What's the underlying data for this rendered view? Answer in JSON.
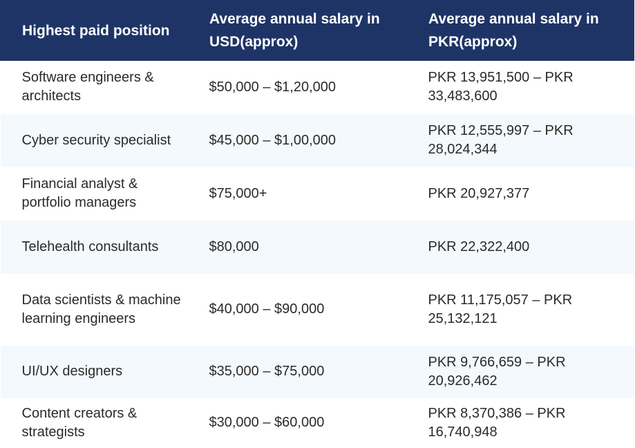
{
  "table": {
    "headers": [
      "Highest paid position",
      "Average annual salary in USD(approx)",
      "Average annual salary in PKR(approx)"
    ],
    "rows": [
      {
        "position": "Software engineers & architects",
        "usd": "$50,000 – $1,20,000",
        "pkr": "PKR 13,951,500 – PKR 33,483,600"
      },
      {
        "position": "Cyber security specialist",
        "usd": "$45,000 – $1,00,000",
        "pkr": "PKR 12,555,997 – PKR 28,024,344"
      },
      {
        "position": "Financial analyst & portfolio managers",
        "usd": "$75,000+",
        "pkr": "PKR 20,927,377"
      },
      {
        "position": "Telehealth consultants",
        "usd": "$80,000",
        "pkr": "PKR 22,322,400"
      },
      {
        "position": "Data scientists & machine learning engineers",
        "usd": "$40,000 – $90,000",
        "pkr": "PKR 11,175,057 – PKR 25,132,121"
      },
      {
        "position": "UI/UX designers",
        "usd": "$35,000 – $75,000",
        "pkr": "PKR 9,766,659 – PKR 20,926,462"
      },
      {
        "position": "Content creators & strategists",
        "usd": "$30,000 – $60,000",
        "pkr": "PKR 8,370,386 – PKR 16,740,948"
      }
    ]
  },
  "colors": {
    "header_bg": "#1f3466",
    "header_text": "#ffffff",
    "stripe_bg": "#f3f9fd",
    "body_text": "#2a2a2a"
  }
}
